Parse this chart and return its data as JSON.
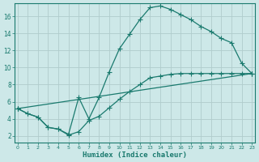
{
  "bg_color": "#cde8e8",
  "grid_color": "#b8d8d8",
  "line_color": "#1a7a6e",
  "xlabel": "Humidex (Indice chaleur)",
  "curve1_x": [
    0,
    1,
    2,
    3,
    4,
    5,
    6,
    7,
    8,
    9,
    10,
    11,
    12,
    13,
    14,
    15,
    16,
    17,
    18,
    19,
    20,
    21,
    22,
    23
  ],
  "curve1_y": [
    5.2,
    4.6,
    4.2,
    3.0,
    2.8,
    2.2,
    6.5,
    4.0,
    6.5,
    9.5,
    12.2,
    13.9,
    15.6,
    17.0,
    17.2,
    16.8,
    16.2,
    15.6,
    14.8,
    14.2,
    13.4,
    12.9,
    10.5,
    9.3
  ],
  "curve2_x": [
    0,
    1,
    2,
    3,
    4,
    5,
    6,
    7,
    8,
    9,
    10,
    11,
    12,
    13,
    14,
    15,
    16,
    17,
    18,
    19,
    20,
    21,
    22,
    23
  ],
  "curve2_y": [
    5.2,
    4.6,
    4.2,
    3.0,
    2.8,
    2.1,
    2.5,
    3.8,
    4.3,
    5.3,
    6.3,
    7.2,
    8.0,
    8.8,
    9.0,
    9.2,
    9.3,
    9.3,
    9.3,
    9.3,
    9.3,
    9.3,
    9.3,
    9.3
  ],
  "curve3_x": [
    0,
    23
  ],
  "curve3_y": [
    5.2,
    9.3
  ],
  "xlim": [
    -0.3,
    23.3
  ],
  "ylim": [
    1.2,
    17.5
  ],
  "xticks": [
    0,
    1,
    2,
    3,
    4,
    5,
    6,
    7,
    8,
    9,
    10,
    11,
    12,
    13,
    14,
    15,
    16,
    17,
    18,
    19,
    20,
    21,
    22,
    23
  ],
  "yticks": [
    2,
    4,
    6,
    8,
    10,
    12,
    14,
    16
  ],
  "marker": "+",
  "markersize": 4,
  "linewidth": 0.9
}
